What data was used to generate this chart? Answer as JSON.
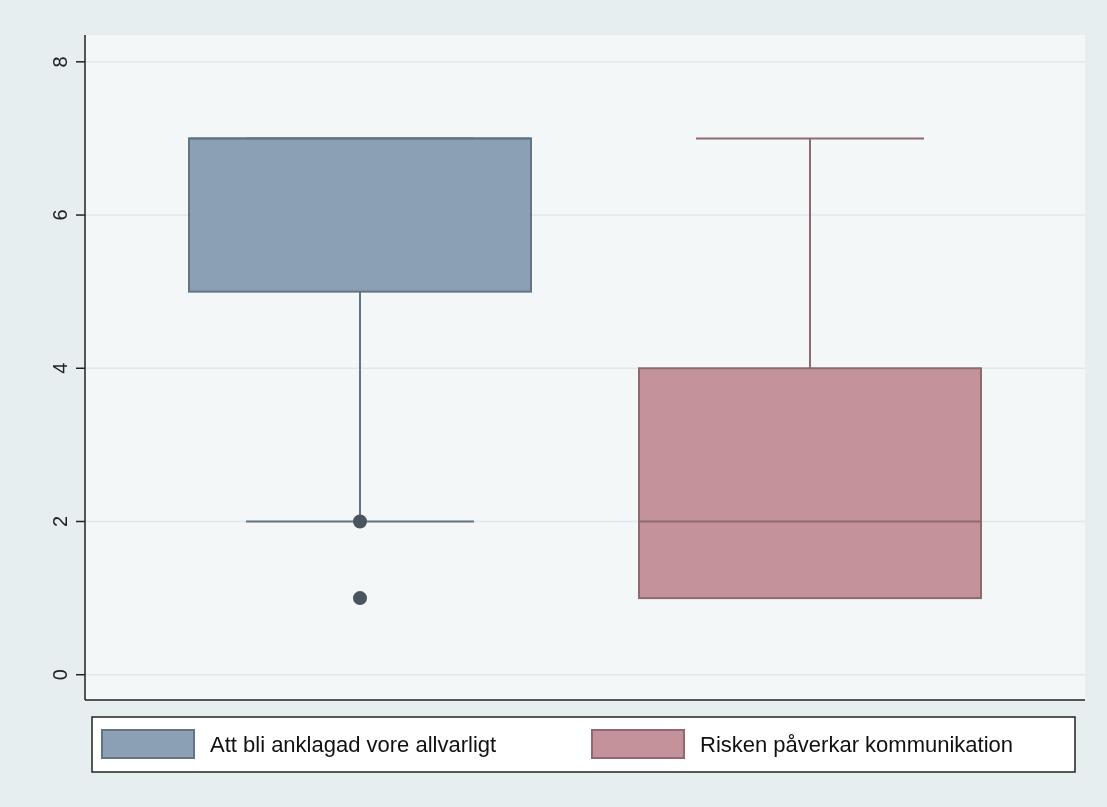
{
  "chart_data": {
    "type": "box",
    "categories": [
      null
    ],
    "series": [
      {
        "name": "Att bli anklagad vore allvarligt",
        "color": "#8ba0b5",
        "boxes": [
          {
            "low": 2,
            "q1": 5,
            "median": 7,
            "q3": 7,
            "high": 7,
            "outliers": [
              2,
              1
            ]
          }
        ]
      },
      {
        "name": "Risken påverkar kommunikation",
        "color": "#c4929a",
        "boxes": [
          {
            "low": 1,
            "q1": 1,
            "median": 2,
            "q3": 4,
            "high": 7
          }
        ]
      }
    ],
    "ylim": [
      -0.33,
      8.35
    ],
    "yticks": [
      0,
      2,
      4,
      6,
      8
    ],
    "grid": "y",
    "legend": "bottom",
    "tick_labels": "y"
  }
}
